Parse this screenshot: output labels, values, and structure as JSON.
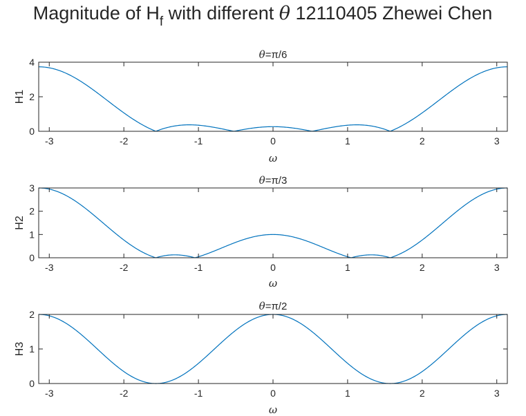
{
  "figure": {
    "title_main": "Magnitude of H",
    "title_subscript": "f",
    "title_rest_pre": " with different ",
    "title_symbol": "θ",
    "title_rest_post": " 12110405 Zhewei Chen"
  },
  "chart_data": [
    {
      "type": "line",
      "title_symbol": "θ",
      "title": "=π/6",
      "theta": 0.5235987756,
      "xlabel": "ω",
      "ylabel": "H1",
      "xlim": [
        -3.14159,
        3.14159
      ],
      "ylim": [
        0,
        4
      ],
      "xticks": [
        -3,
        -2,
        -1,
        0,
        1,
        2,
        3
      ],
      "yticks": [
        0,
        2,
        4
      ],
      "function": "|1 - 2cos(theta)cos(w) + cos(2w)|"
    },
    {
      "type": "line",
      "title_symbol": "θ",
      "title": "=π/3",
      "theta": 1.0471975512,
      "xlabel": "ω",
      "ylabel": "H2",
      "xlim": [
        -3.14159,
        3.14159
      ],
      "ylim": [
        0,
        3
      ],
      "xticks": [
        -3,
        -2,
        -1,
        0,
        1,
        2,
        3
      ],
      "yticks": [
        0,
        1,
        2,
        3
      ],
      "function": "|1 - 2cos(theta)cos(w) + cos(2w)|"
    },
    {
      "type": "line",
      "title_symbol": "θ",
      "title": "=π/2",
      "theta": 1.5707963268,
      "xlabel": "ω",
      "ylabel": "H3",
      "xlim": [
        -3.14159,
        3.14159
      ],
      "ylim": [
        0,
        2
      ],
      "xticks": [
        -3,
        -2,
        -1,
        0,
        1,
        2,
        3
      ],
      "yticks": [
        0,
        1,
        2
      ],
      "function": "|1 - 2cos(theta)cos(w) + cos(2w)|"
    }
  ],
  "colors": {
    "line": "#0072bd",
    "axis": "#262626"
  }
}
